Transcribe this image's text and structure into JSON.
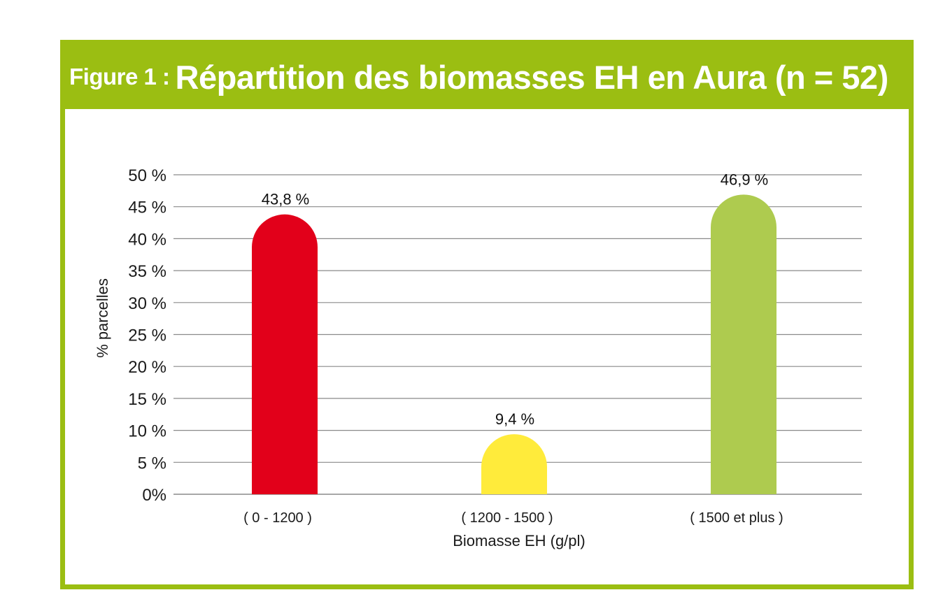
{
  "header": {
    "figure_label": "Figure 1 :",
    "title": "Répartition des biomasses EH en Aura (n = 52)"
  },
  "colors": {
    "frame": "#9bbe12",
    "header_text": "#ffffff",
    "gridline": "#8a8a8a"
  },
  "chart_data": {
    "type": "bar",
    "categories": [
      "( 0 - 1200 )",
      "( 1200 - 1500 )",
      "( 1500  et plus )"
    ],
    "values": [
      43.8,
      9.4,
      46.9
    ],
    "value_labels": [
      "43,8 %",
      "9,4 %",
      "46,9 %"
    ],
    "bar_colors": [
      "#e2001a",
      "#ffeb3b",
      "#aecb4f"
    ],
    "title": "Figure 1 : Répartition des biomasses EH en Aura (n = 52)",
    "xlabel": "Biomasse EH (g/pl)",
    "ylabel": "% parcelles",
    "ylim": [
      0,
      50
    ],
    "yticks": [
      0,
      5,
      10,
      15,
      20,
      25,
      30,
      35,
      40,
      45,
      50
    ],
    "ytick_labels": [
      "0%",
      "5 %",
      "10 %",
      "15 %",
      "20 %",
      "25 %",
      "30 %",
      "35 %",
      "40 %",
      "45 %",
      "50 %"
    ],
    "grid": true,
    "legend": "none"
  }
}
